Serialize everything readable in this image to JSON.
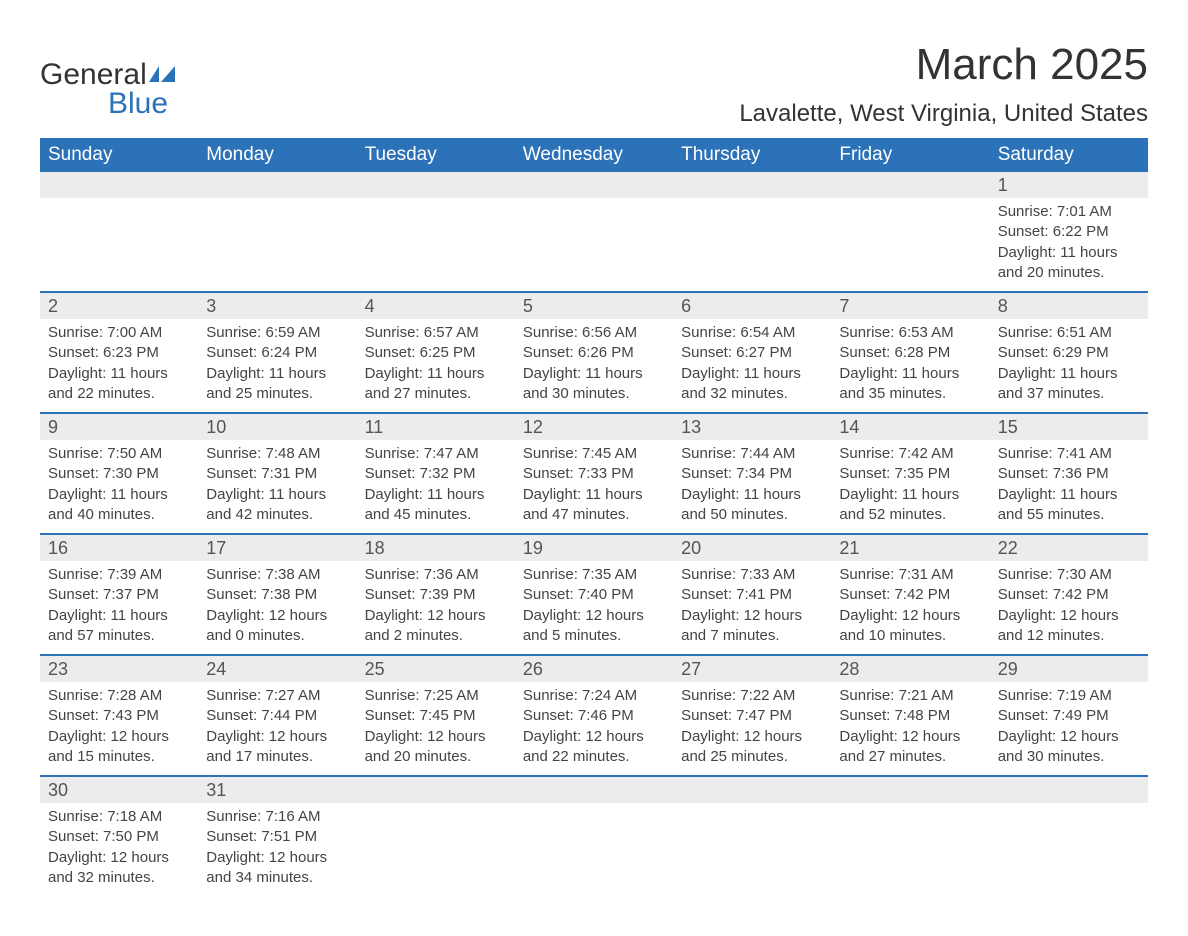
{
  "brand": {
    "name1": "General",
    "name2": "Blue",
    "icon_color": "#2b72b8"
  },
  "title": "March 2025",
  "location": "Lavalette, West Virginia, United States",
  "colors": {
    "header_bg": "#2b72b8",
    "header_text": "#ffffff",
    "daynum_bg": "#ececec",
    "row_divider": "#2b72b8",
    "body_text": "#444444",
    "title_text": "#333333",
    "page_bg": "#ffffff"
  },
  "weekdays": [
    "Sunday",
    "Monday",
    "Tuesday",
    "Wednesday",
    "Thursday",
    "Friday",
    "Saturday"
  ],
  "weeks": [
    [
      null,
      null,
      null,
      null,
      null,
      null,
      {
        "n": "1",
        "sunrise": "7:01 AM",
        "sunset": "6:22 PM",
        "daylight": "11 hours and 20 minutes."
      }
    ],
    [
      {
        "n": "2",
        "sunrise": "7:00 AM",
        "sunset": "6:23 PM",
        "daylight": "11 hours and 22 minutes."
      },
      {
        "n": "3",
        "sunrise": "6:59 AM",
        "sunset": "6:24 PM",
        "daylight": "11 hours and 25 minutes."
      },
      {
        "n": "4",
        "sunrise": "6:57 AM",
        "sunset": "6:25 PM",
        "daylight": "11 hours and 27 minutes."
      },
      {
        "n": "5",
        "sunrise": "6:56 AM",
        "sunset": "6:26 PM",
        "daylight": "11 hours and 30 minutes."
      },
      {
        "n": "6",
        "sunrise": "6:54 AM",
        "sunset": "6:27 PM",
        "daylight": "11 hours and 32 minutes."
      },
      {
        "n": "7",
        "sunrise": "6:53 AM",
        "sunset": "6:28 PM",
        "daylight": "11 hours and 35 minutes."
      },
      {
        "n": "8",
        "sunrise": "6:51 AM",
        "sunset": "6:29 PM",
        "daylight": "11 hours and 37 minutes."
      }
    ],
    [
      {
        "n": "9",
        "sunrise": "7:50 AM",
        "sunset": "7:30 PM",
        "daylight": "11 hours and 40 minutes."
      },
      {
        "n": "10",
        "sunrise": "7:48 AM",
        "sunset": "7:31 PM",
        "daylight": "11 hours and 42 minutes."
      },
      {
        "n": "11",
        "sunrise": "7:47 AM",
        "sunset": "7:32 PM",
        "daylight": "11 hours and 45 minutes."
      },
      {
        "n": "12",
        "sunrise": "7:45 AM",
        "sunset": "7:33 PM",
        "daylight": "11 hours and 47 minutes."
      },
      {
        "n": "13",
        "sunrise": "7:44 AM",
        "sunset": "7:34 PM",
        "daylight": "11 hours and 50 minutes."
      },
      {
        "n": "14",
        "sunrise": "7:42 AM",
        "sunset": "7:35 PM",
        "daylight": "11 hours and 52 minutes."
      },
      {
        "n": "15",
        "sunrise": "7:41 AM",
        "sunset": "7:36 PM",
        "daylight": "11 hours and 55 minutes."
      }
    ],
    [
      {
        "n": "16",
        "sunrise": "7:39 AM",
        "sunset": "7:37 PM",
        "daylight": "11 hours and 57 minutes."
      },
      {
        "n": "17",
        "sunrise": "7:38 AM",
        "sunset": "7:38 PM",
        "daylight": "12 hours and 0 minutes."
      },
      {
        "n": "18",
        "sunrise": "7:36 AM",
        "sunset": "7:39 PM",
        "daylight": "12 hours and 2 minutes."
      },
      {
        "n": "19",
        "sunrise": "7:35 AM",
        "sunset": "7:40 PM",
        "daylight": "12 hours and 5 minutes."
      },
      {
        "n": "20",
        "sunrise": "7:33 AM",
        "sunset": "7:41 PM",
        "daylight": "12 hours and 7 minutes."
      },
      {
        "n": "21",
        "sunrise": "7:31 AM",
        "sunset": "7:42 PM",
        "daylight": "12 hours and 10 minutes."
      },
      {
        "n": "22",
        "sunrise": "7:30 AM",
        "sunset": "7:42 PM",
        "daylight": "12 hours and 12 minutes."
      }
    ],
    [
      {
        "n": "23",
        "sunrise": "7:28 AM",
        "sunset": "7:43 PM",
        "daylight": "12 hours and 15 minutes."
      },
      {
        "n": "24",
        "sunrise": "7:27 AM",
        "sunset": "7:44 PM",
        "daylight": "12 hours and 17 minutes."
      },
      {
        "n": "25",
        "sunrise": "7:25 AM",
        "sunset": "7:45 PM",
        "daylight": "12 hours and 20 minutes."
      },
      {
        "n": "26",
        "sunrise": "7:24 AM",
        "sunset": "7:46 PM",
        "daylight": "12 hours and 22 minutes."
      },
      {
        "n": "27",
        "sunrise": "7:22 AM",
        "sunset": "7:47 PM",
        "daylight": "12 hours and 25 minutes."
      },
      {
        "n": "28",
        "sunrise": "7:21 AM",
        "sunset": "7:48 PM",
        "daylight": "12 hours and 27 minutes."
      },
      {
        "n": "29",
        "sunrise": "7:19 AM",
        "sunset": "7:49 PM",
        "daylight": "12 hours and 30 minutes."
      }
    ],
    [
      {
        "n": "30",
        "sunrise": "7:18 AM",
        "sunset": "7:50 PM",
        "daylight": "12 hours and 32 minutes."
      },
      {
        "n": "31",
        "sunrise": "7:16 AM",
        "sunset": "7:51 PM",
        "daylight": "12 hours and 34 minutes."
      },
      null,
      null,
      null,
      null,
      null
    ]
  ],
  "labels": {
    "sunrise": "Sunrise: ",
    "sunset": "Sunset: ",
    "daylight": "Daylight: "
  }
}
